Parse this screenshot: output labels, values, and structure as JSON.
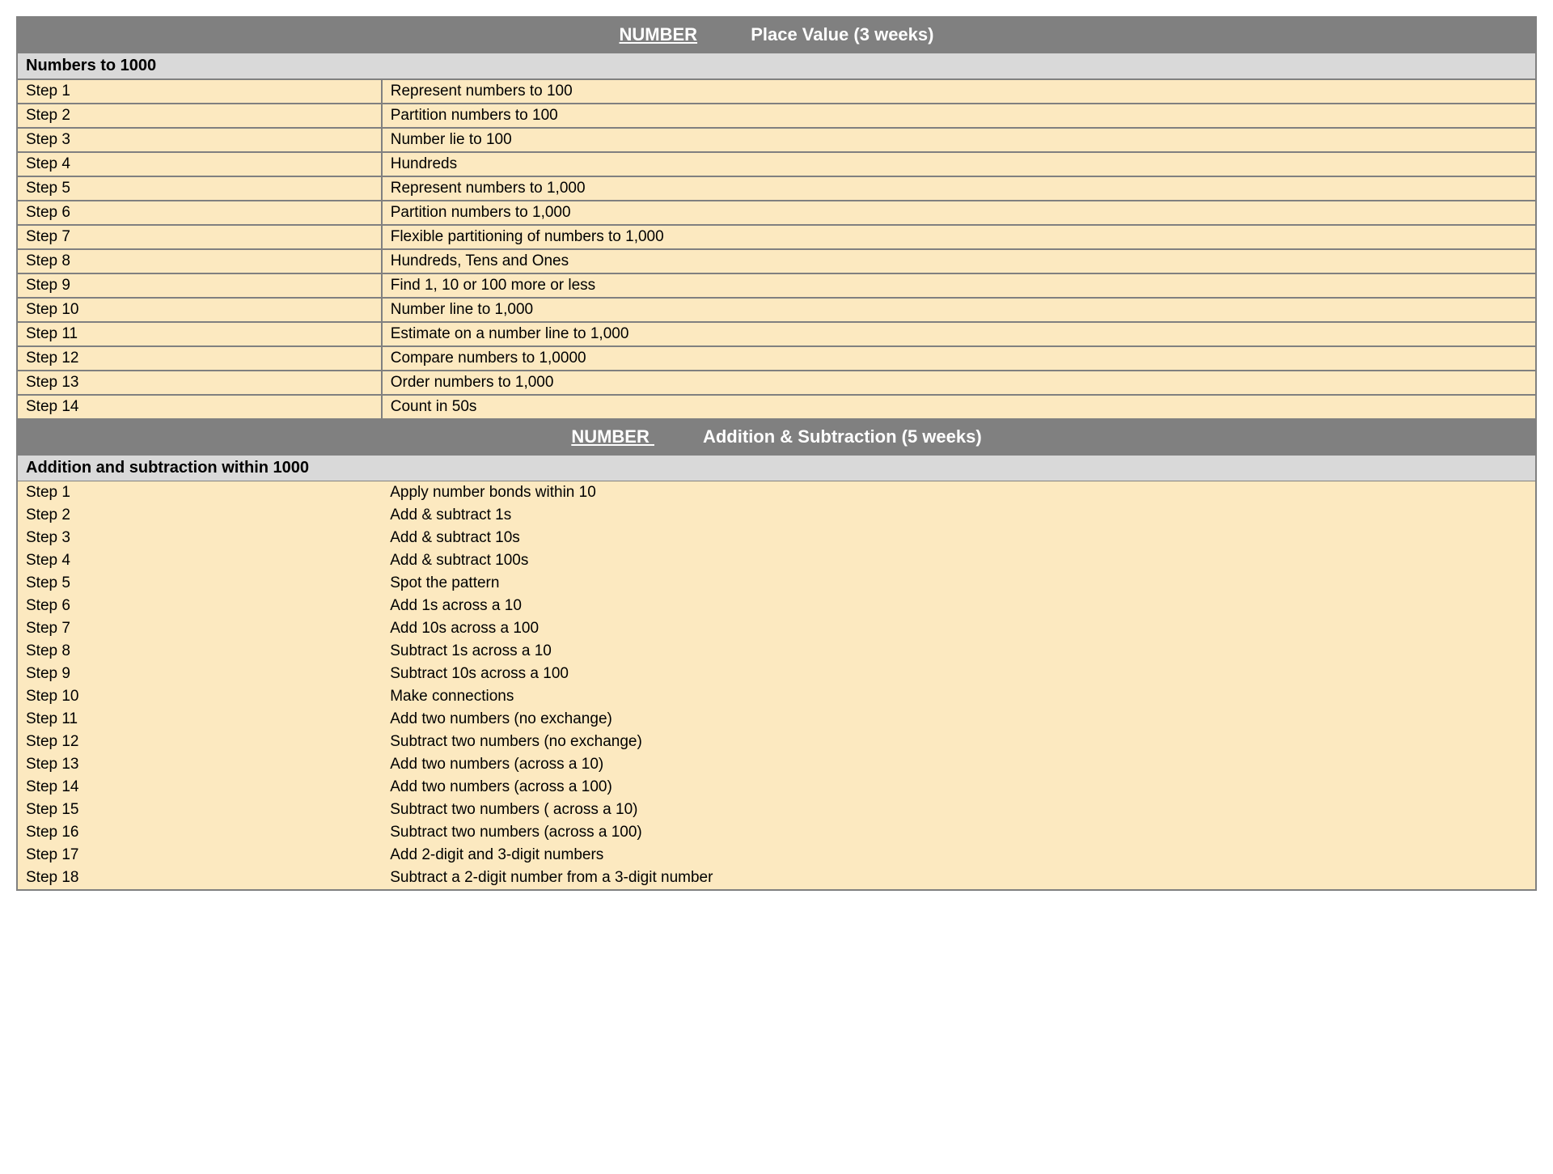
{
  "colors": {
    "header_bg": "#808080",
    "header_text": "#ffffff",
    "subheader_bg": "#d9d9d9",
    "subheader_text": "#000000",
    "row_bg": "#fce9c0",
    "border": "#808080"
  },
  "layout": {
    "step_col_width_pct": 24,
    "desc_col_width_pct": 76,
    "font_size_header": 22,
    "font_size_subheader": 20,
    "font_size_row": 19
  },
  "sections": [
    {
      "category": "NUMBER",
      "title": "Place Value (3 weeks)",
      "subheader": "Numbers to 1000",
      "rows_bordered": true,
      "steps": [
        {
          "step": "Step 1",
          "desc": "Represent numbers to 100"
        },
        {
          "step": "Step 2",
          "desc": "Partition numbers to 100"
        },
        {
          "step": "Step 3",
          "desc": "Number lie to 100"
        },
        {
          "step": "Step 4",
          "desc": "Hundreds"
        },
        {
          "step": "Step 5",
          "desc": "Represent numbers to 1,000"
        },
        {
          "step": "Step 6",
          "desc": "Partition numbers to 1,000"
        },
        {
          "step": "Step 7",
          "desc": "Flexible partitioning of numbers to 1,000"
        },
        {
          "step": "Step 8",
          "desc": "Hundreds, Tens and Ones"
        },
        {
          "step": "Step 9",
          "desc": "Find 1, 10 or 100 more or less"
        },
        {
          "step": "Step 10",
          "desc": "Number line to 1,000"
        },
        {
          "step": "Step 11",
          "desc": "Estimate on a number line to 1,000"
        },
        {
          "step": "Step 12",
          "desc": "Compare numbers to 1,0000"
        },
        {
          "step": "Step 13",
          "desc": "Order numbers to 1,000"
        },
        {
          "step": "Step 14",
          "desc": "Count in 50s"
        }
      ]
    },
    {
      "category": "NUMBER ",
      "title": "Addition & Subtraction (5 weeks)",
      "subheader": "Addition and subtraction within 1000",
      "rows_bordered": false,
      "steps": [
        {
          "step": "Step 1",
          "desc": "Apply number bonds within 10"
        },
        {
          "step": "Step 2",
          "desc": "Add & subtract 1s"
        },
        {
          "step": "Step 3",
          "desc": "Add & subtract 10s"
        },
        {
          "step": "Step 4",
          "desc": "Add & subtract 100s"
        },
        {
          "step": "Step 5",
          "desc": "Spot the pattern"
        },
        {
          "step": "Step 6",
          "desc": "Add 1s across a 10"
        },
        {
          "step": "Step 7",
          "desc": "Add 10s across a 100"
        },
        {
          "step": "Step 8",
          "desc": "Subtract 1s across a 10"
        },
        {
          "step": "Step 9",
          "desc": "Subtract 10s across a 100"
        },
        {
          "step": "Step 10",
          "desc": "Make connections"
        },
        {
          "step": "Step 11",
          "desc": "Add two numbers (no exchange)"
        },
        {
          "step": "Step 12",
          "desc": "Subtract two numbers (no exchange)"
        },
        {
          "step": "Step 13",
          "desc": "Add two numbers (across a 10)"
        },
        {
          "step": "Step 14",
          "desc": "Add two numbers (across a 100)"
        },
        {
          "step": "Step 15",
          "desc": "Subtract two numbers ( across a 10)"
        },
        {
          "step": "Step 16",
          "desc": "Subtract two numbers (across a 100)"
        },
        {
          "step": "Step 17",
          "desc": "Add 2-digit and 3-digit numbers"
        },
        {
          "step": "Step 18",
          "desc": "Subtract a 2-digit number from a 3-digit number"
        }
      ]
    }
  ]
}
